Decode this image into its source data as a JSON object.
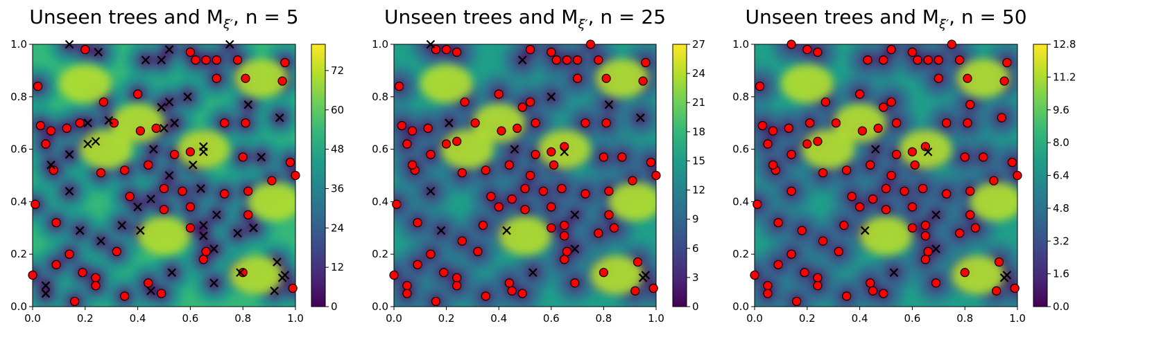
{
  "colors": {
    "viridis": [
      "#440154",
      "#482878",
      "#3e4989",
      "#31688e",
      "#26828e",
      "#1f9e89",
      "#35b779",
      "#6ece58",
      "#b5de2b",
      "#fde725"
    ],
    "point_face": "#ff0000",
    "point_edge": "#000000",
    "cross": "#000000"
  },
  "chart_data": [
    {
      "type": "contour",
      "title": "Unseen trees and M",
      "title_sub": "ξ′",
      "title_n": ", n = 5",
      "xlim": [
        0,
        1
      ],
      "ylim": [
        0,
        1
      ],
      "xticks": [
        "0.0",
        "0.2",
        "0.4",
        "0.6",
        "0.8",
        "1.0"
      ],
      "yticks": [
        "0.0",
        "0.2",
        "0.4",
        "0.6",
        "0.8",
        "1.0"
      ],
      "colorbar_range": [
        0,
        80
      ],
      "colorbar_ticks": [
        "0",
        "12",
        "24",
        "36",
        "48",
        "60",
        "72"
      ],
      "colorbar_tick_values": [
        0,
        12,
        24,
        36,
        48,
        60,
        72
      ],
      "background_level": 0.62,
      "crosses": [
        [
          0.14,
          1.0
        ],
        [
          0.25,
          0.97
        ],
        [
          0.43,
          0.94
        ],
        [
          0.49,
          0.94
        ],
        [
          0.52,
          0.98
        ],
        [
          0.75,
          1.0
        ],
        [
          0.59,
          0.8
        ],
        [
          0.49,
          0.76
        ],
        [
          0.52,
          0.78
        ],
        [
          0.5,
          0.68
        ],
        [
          0.54,
          0.7
        ],
        [
          0.29,
          0.71
        ],
        [
          0.21,
          0.7
        ],
        [
          0.82,
          0.77
        ],
        [
          0.94,
          0.72
        ],
        [
          0.21,
          0.62
        ],
        [
          0.24,
          0.63
        ],
        [
          0.46,
          0.6
        ],
        [
          0.65,
          0.61
        ],
        [
          0.65,
          0.59
        ],
        [
          0.07,
          0.54
        ],
        [
          0.14,
          0.58
        ],
        [
          0.61,
          0.54
        ],
        [
          0.52,
          0.5
        ],
        [
          0.87,
          0.57
        ],
        [
          0.14,
          0.44
        ],
        [
          0.64,
          0.45
        ],
        [
          0.4,
          0.38
        ],
        [
          0.45,
          0.41
        ],
        [
          0.7,
          0.35
        ],
        [
          0.34,
          0.31
        ],
        [
          0.41,
          0.29
        ],
        [
          0.65,
          0.31
        ],
        [
          0.65,
          0.27
        ],
        [
          0.84,
          0.3
        ],
        [
          0.18,
          0.29
        ],
        [
          0.78,
          0.28
        ],
        [
          0.26,
          0.25
        ],
        [
          0.69,
          0.22
        ],
        [
          0.53,
          0.13
        ],
        [
          0.79,
          0.13
        ],
        [
          0.93,
          0.17
        ],
        [
          0.95,
          0.11
        ],
        [
          0.96,
          0.12
        ],
        [
          0.92,
          0.06
        ],
        [
          0.69,
          0.09
        ],
        [
          0.45,
          0.06
        ],
        [
          0.05,
          0.08
        ],
        [
          0.05,
          0.05
        ]
      ],
      "points": [
        [
          0.02,
          0.84
        ],
        [
          0.03,
          0.69
        ],
        [
          0.07,
          0.67
        ],
        [
          0.05,
          0.62
        ],
        [
          0.08,
          0.52
        ],
        [
          0.13,
          0.68
        ],
        [
          0.2,
          0.98
        ],
        [
          0.18,
          0.7
        ],
        [
          0.27,
          0.78
        ],
        [
          0.31,
          0.7
        ],
        [
          0.4,
          0.81
        ],
        [
          0.41,
          0.67
        ],
        [
          0.47,
          0.68
        ],
        [
          0.6,
          0.97
        ],
        [
          0.62,
          0.94
        ],
        [
          0.66,
          0.94
        ],
        [
          0.7,
          0.94
        ],
        [
          0.78,
          0.94
        ],
        [
          0.96,
          0.93
        ],
        [
          0.7,
          0.87
        ],
        [
          0.81,
          0.87
        ],
        [
          0.95,
          0.86
        ],
        [
          0.73,
          0.7
        ],
        [
          0.81,
          0.7
        ],
        [
          0.26,
          0.51
        ],
        [
          0.35,
          0.52
        ],
        [
          0.44,
          0.54
        ],
        [
          0.54,
          0.58
        ],
        [
          0.6,
          0.59
        ],
        [
          0.8,
          0.57
        ],
        [
          0.98,
          0.55
        ],
        [
          1.0,
          0.5
        ],
        [
          0.37,
          0.42
        ],
        [
          0.5,
          0.45
        ],
        [
          0.5,
          0.37
        ],
        [
          0.57,
          0.44
        ],
        [
          0.6,
          0.38
        ],
        [
          0.73,
          0.43
        ],
        [
          0.82,
          0.44
        ],
        [
          0.91,
          0.48
        ],
        [
          0.01,
          0.39
        ],
        [
          0.09,
          0.32
        ],
        [
          0.6,
          0.3
        ],
        [
          0.66,
          0.21
        ],
        [
          0.82,
          0.35
        ],
        [
          0.32,
          0.21
        ],
        [
          0.14,
          0.2
        ],
        [
          0.09,
          0.16
        ],
        [
          0.19,
          0.13
        ],
        [
          0.24,
          0.11
        ],
        [
          0.24,
          0.08
        ],
        [
          0.0,
          0.12
        ],
        [
          0.16,
          0.02
        ],
        [
          0.35,
          0.04
        ],
        [
          0.44,
          0.09
        ],
        [
          0.49,
          0.05
        ],
        [
          0.65,
          0.18
        ],
        [
          0.8,
          0.13
        ],
        [
          0.99,
          0.07
        ]
      ]
    },
    {
      "type": "contour",
      "title": "Unseen trees and M",
      "title_sub": "ξ′",
      "title_n": ", n = 25",
      "xlim": [
        0,
        1
      ],
      "ylim": [
        0,
        1
      ],
      "xticks": [
        "0.0",
        "0.2",
        "0.4",
        "0.6",
        "0.8",
        "1.0"
      ],
      "yticks": [
        "0.0",
        "0.2",
        "0.4",
        "0.6",
        "0.8",
        "1.0"
      ],
      "colorbar_range": [
        0,
        27
      ],
      "colorbar_ticks": [
        "0",
        "3",
        "6",
        "9",
        "12",
        "15",
        "18",
        "21",
        "24",
        "27"
      ],
      "colorbar_tick_values": [
        0,
        3,
        6,
        9,
        12,
        15,
        18,
        21,
        24,
        27
      ],
      "background_level": 0.55,
      "crosses": [
        [
          0.14,
          1.0
        ],
        [
          0.49,
          0.94
        ],
        [
          0.6,
          0.8
        ],
        [
          0.82,
          0.77
        ],
        [
          0.94,
          0.72
        ],
        [
          0.21,
          0.7
        ],
        [
          0.46,
          0.6
        ],
        [
          0.65,
          0.59
        ],
        [
          0.14,
          0.44
        ],
        [
          0.18,
          0.29
        ],
        [
          0.43,
          0.29
        ],
        [
          0.69,
          0.35
        ],
        [
          0.69,
          0.22
        ],
        [
          0.53,
          0.13
        ],
        [
          0.95,
          0.11
        ],
        [
          0.96,
          0.12
        ]
      ],
      "points": [
        [
          0.02,
          0.84
        ],
        [
          0.03,
          0.69
        ],
        [
          0.07,
          0.67
        ],
        [
          0.05,
          0.62
        ],
        [
          0.08,
          0.52
        ],
        [
          0.13,
          0.68
        ],
        [
          0.2,
          0.98
        ],
        [
          0.24,
          0.97
        ],
        [
          0.16,
          0.98
        ],
        [
          0.2,
          0.62
        ],
        [
          0.24,
          0.63
        ],
        [
          0.27,
          0.78
        ],
        [
          0.31,
          0.7
        ],
        [
          0.4,
          0.81
        ],
        [
          0.41,
          0.67
        ],
        [
          0.47,
          0.68
        ],
        [
          0.49,
          0.76
        ],
        [
          0.52,
          0.78
        ],
        [
          0.54,
          0.7
        ],
        [
          0.52,
          0.98
        ],
        [
          0.6,
          0.97
        ],
        [
          0.62,
          0.94
        ],
        [
          0.66,
          0.94
        ],
        [
          0.7,
          0.94
        ],
        [
          0.75,
          1.0
        ],
        [
          0.78,
          0.94
        ],
        [
          0.96,
          0.93
        ],
        [
          0.7,
          0.87
        ],
        [
          0.81,
          0.87
        ],
        [
          0.95,
          0.86
        ],
        [
          0.73,
          0.7
        ],
        [
          0.81,
          0.7
        ],
        [
          0.14,
          0.58
        ],
        [
          0.07,
          0.54
        ],
        [
          0.26,
          0.51
        ],
        [
          0.35,
          0.52
        ],
        [
          0.44,
          0.54
        ],
        [
          0.54,
          0.58
        ],
        [
          0.6,
          0.59
        ],
        [
          0.61,
          0.54
        ],
        [
          0.65,
          0.61
        ],
        [
          0.52,
          0.5
        ],
        [
          0.8,
          0.57
        ],
        [
          0.87,
          0.57
        ],
        [
          0.98,
          0.55
        ],
        [
          1.0,
          0.5
        ],
        [
          0.37,
          0.42
        ],
        [
          0.4,
          0.38
        ],
        [
          0.45,
          0.41
        ],
        [
          0.5,
          0.45
        ],
        [
          0.5,
          0.37
        ],
        [
          0.57,
          0.44
        ],
        [
          0.6,
          0.38
        ],
        [
          0.64,
          0.45
        ],
        [
          0.73,
          0.43
        ],
        [
          0.82,
          0.44
        ],
        [
          0.91,
          0.48
        ],
        [
          0.01,
          0.39
        ],
        [
          0.09,
          0.32
        ],
        [
          0.34,
          0.31
        ],
        [
          0.6,
          0.3
        ],
        [
          0.65,
          0.31
        ],
        [
          0.65,
          0.27
        ],
        [
          0.66,
          0.21
        ],
        [
          0.78,
          0.28
        ],
        [
          0.84,
          0.3
        ],
        [
          0.82,
          0.35
        ],
        [
          0.26,
          0.25
        ],
        [
          0.32,
          0.21
        ],
        [
          0.14,
          0.2
        ],
        [
          0.09,
          0.16
        ],
        [
          0.19,
          0.13
        ],
        [
          0.24,
          0.11
        ],
        [
          0.24,
          0.08
        ],
        [
          0.0,
          0.12
        ],
        [
          0.05,
          0.08
        ],
        [
          0.05,
          0.05
        ],
        [
          0.16,
          0.02
        ],
        [
          0.35,
          0.04
        ],
        [
          0.44,
          0.09
        ],
        [
          0.45,
          0.06
        ],
        [
          0.49,
          0.05
        ],
        [
          0.65,
          0.18
        ],
        [
          0.69,
          0.09
        ],
        [
          0.8,
          0.13
        ],
        [
          0.93,
          0.17
        ],
        [
          0.92,
          0.06
        ],
        [
          0.99,
          0.07
        ]
      ]
    },
    {
      "type": "contour",
      "title": "Unseen trees and M",
      "title_sub": "ξ′",
      "title_n": ", n = 50",
      "xlim": [
        0,
        1
      ],
      "ylim": [
        0,
        1
      ],
      "xticks": [
        "0.0",
        "0.2",
        "0.4",
        "0.6",
        "0.8",
        "1.0"
      ],
      "yticks": [
        "0.0",
        "0.2",
        "0.4",
        "0.6",
        "0.8",
        "1.0"
      ],
      "colorbar_range": [
        0,
        12.8
      ],
      "colorbar_ticks": [
        "0.0",
        "1.6",
        "3.2",
        "4.8",
        "6.4",
        "8.0",
        "9.6",
        "11.2",
        "12.8"
      ],
      "colorbar_tick_values": [
        0,
        1.6,
        3.2,
        4.8,
        6.4,
        8.0,
        9.6,
        11.2,
        12.8
      ],
      "background_level": 0.55,
      "crosses": [
        [
          0.46,
          0.6
        ],
        [
          0.66,
          0.59
        ],
        [
          0.42,
          0.29
        ],
        [
          0.69,
          0.35
        ],
        [
          0.69,
          0.22
        ],
        [
          0.53,
          0.13
        ],
        [
          0.95,
          0.11
        ],
        [
          0.96,
          0.12
        ]
      ],
      "points": [
        [
          0.02,
          0.84
        ],
        [
          0.03,
          0.69
        ],
        [
          0.07,
          0.67
        ],
        [
          0.05,
          0.62
        ],
        [
          0.08,
          0.52
        ],
        [
          0.13,
          0.68
        ],
        [
          0.2,
          0.98
        ],
        [
          0.24,
          0.97
        ],
        [
          0.14,
          1.0
        ],
        [
          0.2,
          0.62
        ],
        [
          0.24,
          0.63
        ],
        [
          0.21,
          0.7
        ],
        [
          0.27,
          0.78
        ],
        [
          0.31,
          0.7
        ],
        [
          0.4,
          0.81
        ],
        [
          0.41,
          0.67
        ],
        [
          0.47,
          0.68
        ],
        [
          0.49,
          0.76
        ],
        [
          0.52,
          0.78
        ],
        [
          0.54,
          0.7
        ],
        [
          0.43,
          0.94
        ],
        [
          0.49,
          0.94
        ],
        [
          0.52,
          0.98
        ],
        [
          0.6,
          0.97
        ],
        [
          0.62,
          0.94
        ],
        [
          0.66,
          0.94
        ],
        [
          0.7,
          0.94
        ],
        [
          0.75,
          1.0
        ],
        [
          0.78,
          0.94
        ],
        [
          0.96,
          0.93
        ],
        [
          0.7,
          0.87
        ],
        [
          0.81,
          0.87
        ],
        [
          0.95,
          0.86
        ],
        [
          0.73,
          0.7
        ],
        [
          0.81,
          0.7
        ],
        [
          0.82,
          0.77
        ],
        [
          0.94,
          0.72
        ],
        [
          0.14,
          0.58
        ],
        [
          0.07,
          0.54
        ],
        [
          0.26,
          0.51
        ],
        [
          0.35,
          0.52
        ],
        [
          0.44,
          0.54
        ],
        [
          0.54,
          0.58
        ],
        [
          0.6,
          0.59
        ],
        [
          0.61,
          0.54
        ],
        [
          0.65,
          0.61
        ],
        [
          0.52,
          0.5
        ],
        [
          0.8,
          0.57
        ],
        [
          0.87,
          0.57
        ],
        [
          0.98,
          0.55
        ],
        [
          1.0,
          0.5
        ],
        [
          0.37,
          0.42
        ],
        [
          0.4,
          0.38
        ],
        [
          0.45,
          0.41
        ],
        [
          0.5,
          0.45
        ],
        [
          0.5,
          0.37
        ],
        [
          0.57,
          0.44
        ],
        [
          0.6,
          0.38
        ],
        [
          0.64,
          0.45
        ],
        [
          0.73,
          0.43
        ],
        [
          0.82,
          0.44
        ],
        [
          0.91,
          0.48
        ],
        [
          0.14,
          0.44
        ],
        [
          0.01,
          0.39
        ],
        [
          0.09,
          0.32
        ],
        [
          0.34,
          0.31
        ],
        [
          0.18,
          0.29
        ],
        [
          0.6,
          0.3
        ],
        [
          0.65,
          0.31
        ],
        [
          0.65,
          0.27
        ],
        [
          0.66,
          0.21
        ],
        [
          0.78,
          0.28
        ],
        [
          0.84,
          0.3
        ],
        [
          0.82,
          0.35
        ],
        [
          0.26,
          0.25
        ],
        [
          0.32,
          0.21
        ],
        [
          0.14,
          0.2
        ],
        [
          0.09,
          0.16
        ],
        [
          0.19,
          0.13
        ],
        [
          0.24,
          0.11
        ],
        [
          0.24,
          0.08
        ],
        [
          0.0,
          0.12
        ],
        [
          0.05,
          0.08
        ],
        [
          0.05,
          0.05
        ],
        [
          0.16,
          0.02
        ],
        [
          0.35,
          0.04
        ],
        [
          0.44,
          0.09
        ],
        [
          0.45,
          0.06
        ],
        [
          0.49,
          0.05
        ],
        [
          0.65,
          0.18
        ],
        [
          0.69,
          0.09
        ],
        [
          0.8,
          0.13
        ],
        [
          0.93,
          0.17
        ],
        [
          0.92,
          0.06
        ],
        [
          0.99,
          0.07
        ]
      ]
    }
  ]
}
